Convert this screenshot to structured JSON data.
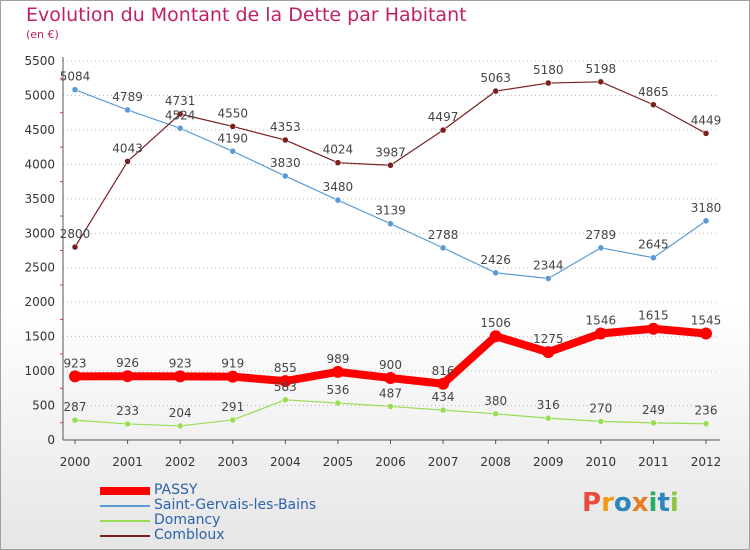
{
  "title": "Evolution du Montant de la Dette par Habitant",
  "unit_label": "(en €)",
  "logo": {
    "text": "Proxiti",
    "letters": [
      {
        "char": "P",
        "color": "#e84c3d"
      },
      {
        "char": "r",
        "color": "#f39c12"
      },
      {
        "char": "o",
        "color": "#2e86c1"
      },
      {
        "char": "x",
        "color": "#e67e22"
      },
      {
        "char": "i",
        "color": "#27ae60"
      },
      {
        "char": "t",
        "color": "#2e86c1"
      },
      {
        "char": "i",
        "color": "#8cc63f"
      }
    ]
  },
  "chart_data": {
    "type": "line",
    "title": "Evolution du Montant de la Dette par Habitant",
    "subtitle": "(en €)",
    "x": [
      "2000",
      "2001",
      "2002",
      "2003",
      "2004",
      "2005",
      "2006",
      "2007",
      "2008",
      "2009",
      "2010",
      "2011",
      "2012"
    ],
    "ylim": [
      0,
      5500
    ],
    "yticks": [
      "0",
      "500",
      "1000",
      "1500",
      "2000",
      "2500",
      "3000",
      "3500",
      "4000",
      "4500",
      "5000",
      "5500"
    ],
    "grid": "horizontal dotted",
    "legend_position": "bottom-left",
    "series": [
      {
        "name": "PASSY",
        "color": "#ff0000",
        "values": [
          923,
          926,
          923,
          919,
          855,
          989,
          900,
          816,
          1506,
          1275,
          1546,
          1615,
          1545
        ]
      },
      {
        "name": "Saint-Gervais-les-Bains",
        "color": "#5b9bd5",
        "values": [
          5084,
          4789,
          4524,
          4190,
          3830,
          3480,
          3139,
          2788,
          2426,
          2344,
          2789,
          2645,
          3180
        ]
      },
      {
        "name": "Domancy",
        "color": "#99dd55",
        "values": [
          287,
          233,
          204,
          291,
          583,
          536,
          487,
          434,
          380,
          316,
          270,
          249,
          236
        ]
      },
      {
        "name": "Combloux",
        "color": "#7a1f1f",
        "values": [
          2800,
          4043,
          4731,
          4550,
          4353,
          4024,
          3987,
          4497,
          5063,
          5180,
          5198,
          4865,
          4449
        ]
      }
    ]
  }
}
